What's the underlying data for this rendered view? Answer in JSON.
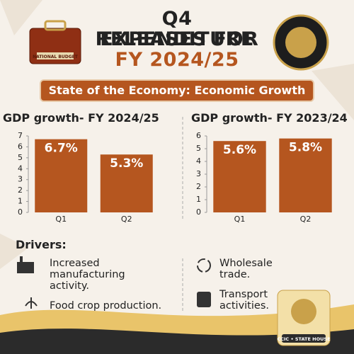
{
  "header": {
    "title_line1": "Q4 EXPENDITURE",
    "title_line2": "RELEASES FOR",
    "title_line3": "FY 2024/25",
    "briefcase_label": "NATIONAL BUDGET",
    "banner": "State of the Economy: Economic Growth"
  },
  "chart_data": [
    {
      "type": "bar",
      "title": "GDP growth- FY 2024/25",
      "categories": [
        "Q1",
        "Q2"
      ],
      "values": [
        6.7,
        5.3
      ],
      "value_labels": [
        "6.7%",
        "5.3%"
      ],
      "color": "#b5561f",
      "ylim": [
        0,
        7
      ],
      "yticks": [
        0,
        1,
        2,
        3,
        4,
        5,
        6,
        7
      ]
    },
    {
      "type": "bar",
      "title": "GDP growth- FY 2023/24",
      "categories": [
        "Q1",
        "Q2"
      ],
      "values": [
        5.6,
        5.8
      ],
      "value_labels": [
        "5.6%",
        "5.8%"
      ],
      "color": "#b5561f",
      "ylim": [
        0,
        6
      ],
      "yticks": [
        0,
        1,
        2,
        3,
        4,
        5,
        6
      ]
    }
  ],
  "drivers": {
    "title": "Drivers:",
    "items": [
      "Increased manufacturing activity.",
      "Food crop production.",
      "Wholesale trade.",
      "Transport activities."
    ]
  },
  "footer": {
    "badge": "CCIC • STATE HOUSE"
  }
}
